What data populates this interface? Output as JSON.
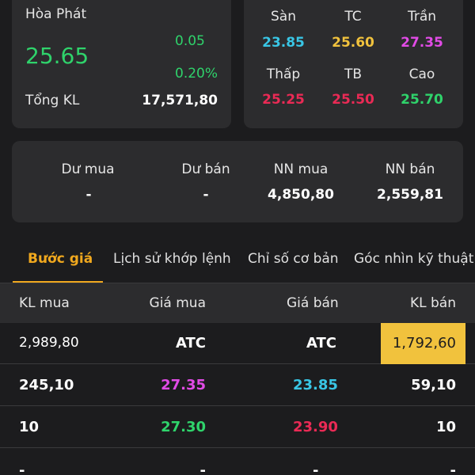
{
  "stock": {
    "name": "Hòa Phát",
    "price": "25.65",
    "change": "0.05",
    "change_pct": "0.20%",
    "total_volume_label": "Tổng KL",
    "total_volume": "17,571,80"
  },
  "ref_prices": [
    {
      "label": "Sàn",
      "value": "23.85",
      "color": "#39c6e5"
    },
    {
      "label": "TC",
      "value": "25.60",
      "color": "#f1c23d"
    },
    {
      "label": "Trần",
      "value": "27.35",
      "color": "#e14be6"
    },
    {
      "label": "Thấp",
      "value": "25.25",
      "color": "#ea2a55"
    },
    {
      "label": "TB",
      "value": "25.50",
      "color": "#ea2a55"
    },
    {
      "label": "Cao",
      "value": "25.70",
      "color": "#2fd36b"
    }
  ],
  "foreign": [
    {
      "label": "Dư mua",
      "value": "-"
    },
    {
      "label": "Dư bán",
      "value": "-"
    },
    {
      "label": "NN mua",
      "value": "4,850,80"
    },
    {
      "label": "NN bán",
      "value": "2,559,81"
    }
  ],
  "tabs": [
    {
      "label": "Bước giá",
      "active": true
    },
    {
      "label": "Lịch sử khớp lệnh",
      "active": false
    },
    {
      "label": "Chỉ số cơ bản",
      "active": false
    },
    {
      "label": "Góc nhìn kỹ thuật",
      "active": false
    }
  ],
  "order_book": {
    "headers": {
      "buy_vol": "KL mua",
      "buy_price": "Giá mua",
      "sell_price": "Giá bán",
      "sell_vol": "KL bán"
    },
    "rows": [
      {
        "buy_vol": "2,989,80",
        "buy_price": "ATC",
        "sell_price": "ATC",
        "sell_vol": "1,792,60"
      },
      {
        "buy_vol": "245,10",
        "buy_price": "27.35",
        "sell_price": "23.85",
        "sell_vol": "59,10"
      },
      {
        "buy_vol": "10",
        "buy_price": "27.30",
        "sell_price": "23.90",
        "sell_vol": "10"
      },
      {
        "buy_vol": "-",
        "buy_price": "-",
        "sell_price": "-",
        "sell_vol": "-"
      }
    ]
  },
  "colors": {
    "background": "#1c1c1e",
    "card": "#2c2c2e",
    "up": "#2fd36b",
    "accent": "#f0a81e",
    "highlight": "#f1c23d"
  }
}
